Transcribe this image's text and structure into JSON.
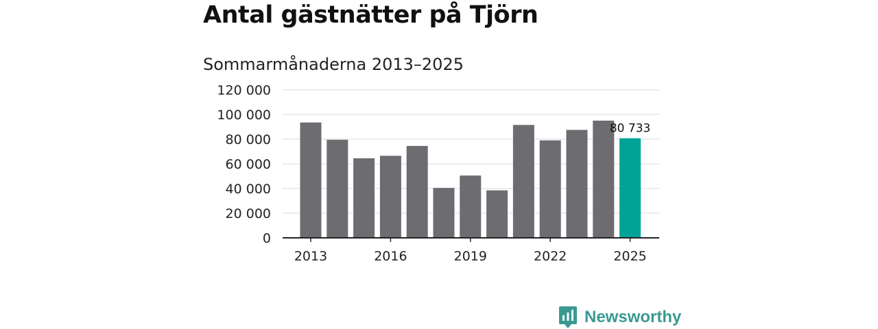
{
  "title": "Antal gästnätter på Tjörn",
  "subtitle": "Sommarmånaderna 2013–2025",
  "brand": {
    "name": "Newsworthy",
    "icon": "newsworthy-logo-icon",
    "color": "#3a9a92"
  },
  "colors": {
    "bar": "#6d6c71",
    "highlight": "#00a396",
    "grid": "#d9d9d9",
    "axis": "#222222"
  },
  "chart_data": {
    "type": "bar",
    "categories": [
      "2013",
      "2014",
      "2015",
      "2016",
      "2017",
      "2018",
      "2019",
      "2020",
      "2021",
      "2022",
      "2023",
      "2024",
      "2025"
    ],
    "values": [
      93500,
      79500,
      64500,
      66500,
      74500,
      40500,
      50500,
      38500,
      91500,
      79000,
      87500,
      95000,
      80733
    ],
    "highlight_index": 12,
    "highlight_label": "80 733",
    "ylim": [
      0,
      120000
    ],
    "yticks": [
      0,
      20000,
      40000,
      60000,
      80000,
      100000,
      120000
    ],
    "ytick_labels": [
      "0",
      "20 000",
      "40 000",
      "60 000",
      "80 000",
      "100 000",
      "120 000"
    ],
    "xtick_labels": [
      "2013",
      "2016",
      "2019",
      "2022",
      "2025"
    ],
    "xtick_indices": [
      0,
      3,
      6,
      9,
      12
    ],
    "grid": true,
    "xlabel": "",
    "ylabel": ""
  }
}
